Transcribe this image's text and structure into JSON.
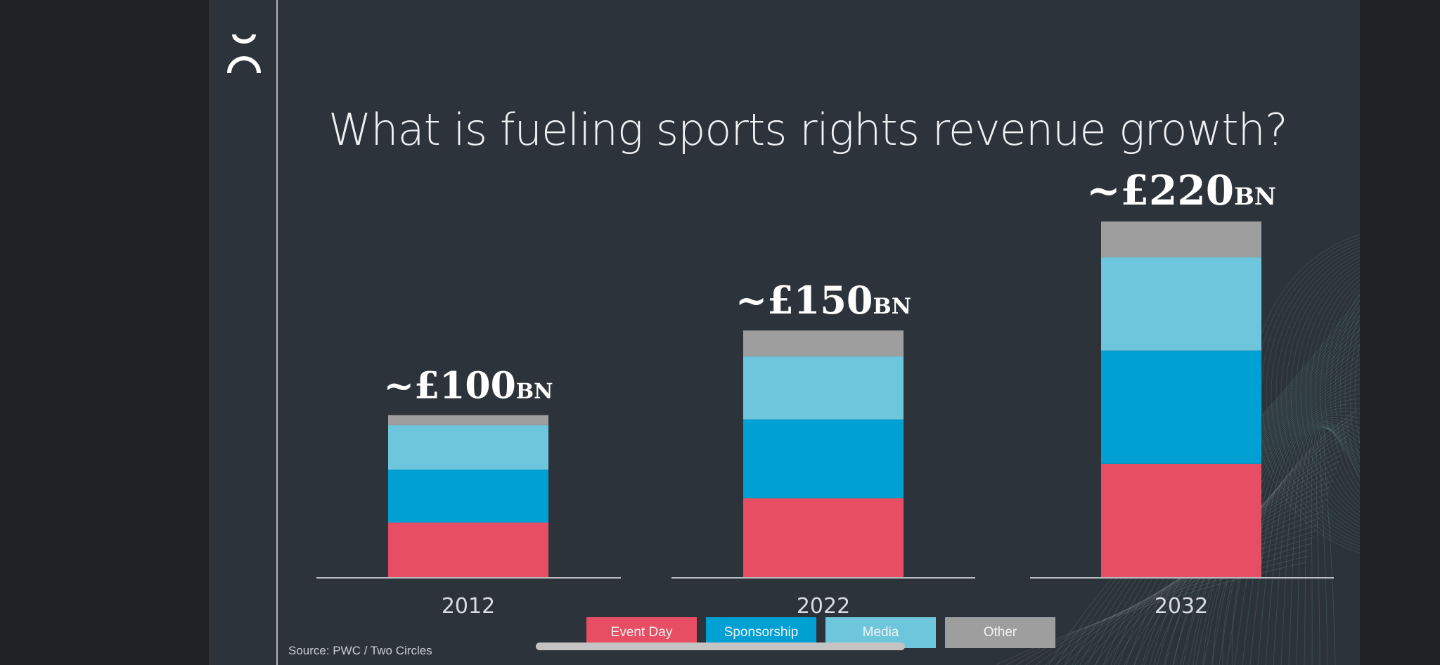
{
  "slide": {
    "title": "What is fueling sports rights revenue growth?",
    "source": "Source: PWC / Two Circles",
    "logo_icon": "two-circles-logo-icon"
  },
  "legend": [
    {
      "label": "Event Day",
      "color": "#e84e63"
    },
    {
      "label": "Sponsorship",
      "color": "#00a0d2"
    },
    {
      "label": "Media",
      "color": "#6ec6dc"
    },
    {
      "label": "Other",
      "color": "#9e9e9e"
    }
  ],
  "chart_data": {
    "type": "bar",
    "stacked": true,
    "title": "What is fueling sports rights revenue growth?",
    "categories": [
      "2012",
      "2022",
      "2032"
    ],
    "series": [
      {
        "name": "Event Day",
        "color": "#e84e63",
        "values": [
          38,
          55,
          79
        ]
      },
      {
        "name": "Sponsorship",
        "color": "#00a0d2",
        "values": [
          37,
          55,
          79
        ]
      },
      {
        "name": "Media",
        "color": "#6ec6dc",
        "values": [
          31,
          44,
          65
        ]
      },
      {
        "name": "Other",
        "color": "#9e9e9e",
        "values": [
          7,
          18,
          25
        ]
      }
    ],
    "totals": [
      "~£100BN",
      "~£150BN",
      "~£220BN"
    ],
    "ylim": [
      0,
      248
    ],
    "grid": false,
    "legend_position": "bottom"
  }
}
